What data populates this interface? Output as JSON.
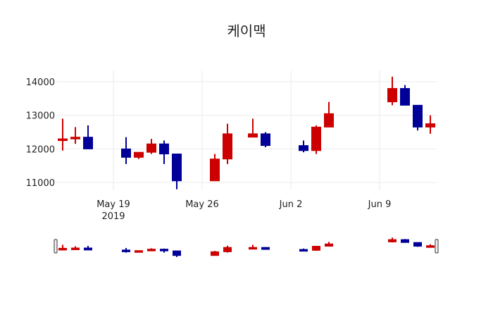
{
  "chart_data": {
    "type": "candlestick",
    "title": "케이맥",
    "xlabel": "",
    "ylabel": "",
    "ylim": [
      10650,
      14300
    ],
    "yticks": [
      11000,
      12000,
      13000,
      14000
    ],
    "xticks": [
      {
        "label": "May 19",
        "sublabel": "2019",
        "date": "2019-05-19"
      },
      {
        "label": "May 26",
        "sublabel": "",
        "date": "2019-05-26"
      },
      {
        "label": "Jun 2",
        "sublabel": "",
        "date": "2019-06-02"
      },
      {
        "label": "Jun 9",
        "sublabel": "",
        "date": "2019-06-09"
      }
    ],
    "grid": true,
    "rangeslider": true,
    "increasing_color": "#cc0000",
    "decreasing_color": "#000099",
    "x": [
      "2019-05-15",
      "2019-05-16",
      "2019-05-17",
      "2019-05-20",
      "2019-05-21",
      "2019-05-22",
      "2019-05-23",
      "2019-05-24",
      "2019-05-27",
      "2019-05-28",
      "2019-05-30",
      "2019-05-31",
      "2019-06-03",
      "2019-06-04",
      "2019-06-05",
      "2019-06-10",
      "2019-06-11",
      "2019-06-12",
      "2019-06-13"
    ],
    "open": [
      12250,
      12300,
      12350,
      12000,
      11750,
      11900,
      12150,
      11850,
      11050,
      11700,
      12350,
      12450,
      12100,
      11950,
      12650,
      13400,
      13800,
      13300,
      12650
    ],
    "high": [
      12900,
      12650,
      12700,
      12350,
      11900,
      12300,
      12250,
      11850,
      11850,
      12750,
      12900,
      12500,
      12250,
      12700,
      13400,
      14150,
      13900,
      13300,
      13000
    ],
    "low": [
      11950,
      12150,
      12000,
      11550,
      11700,
      11850,
      11550,
      10800,
      11050,
      11550,
      12350,
      12050,
      11900,
      11850,
      12650,
      13300,
      13300,
      12550,
      12450
    ],
    "close": [
      12300,
      12350,
      12000,
      11750,
      11900,
      12150,
      11850,
      11050,
      11700,
      12450,
      12450,
      12100,
      11950,
      12650,
      13050,
      13800,
      13300,
      12650,
      12750
    ]
  }
}
